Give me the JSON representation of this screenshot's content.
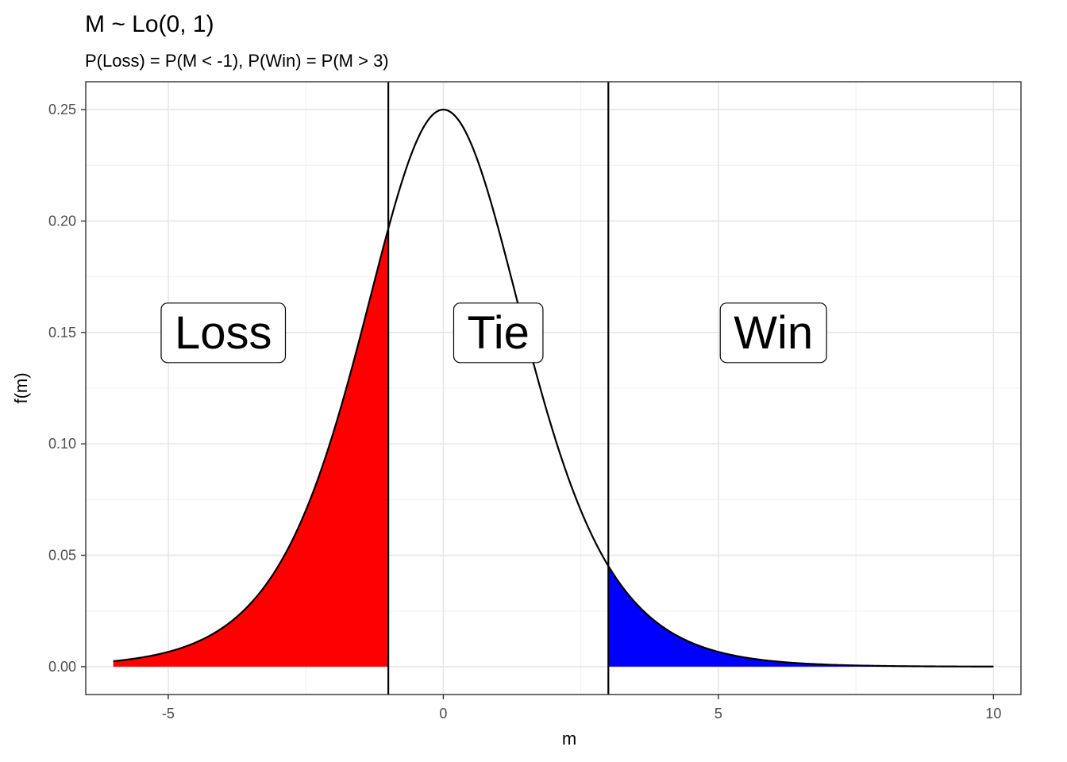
{
  "chart_data": {
    "type": "area",
    "title": "M ~ Lo(0, 1)",
    "subtitle": "P(Loss) = P(M < -1), P(Win) = P(M > 3)",
    "xlabel": "m",
    "ylabel": "f(m)",
    "xlim": [
      -6.5,
      10.5
    ],
    "ylim": [
      -0.0125,
      0.2625
    ],
    "x_ticks": [
      -5,
      0,
      5,
      10
    ],
    "x_tick_labels": [
      "-5",
      "0",
      "5",
      "10"
    ],
    "y_ticks": [
      0,
      0.05,
      0.1,
      0.15,
      0.2,
      0.25
    ],
    "y_tick_labels": [
      "0.00",
      "0.05",
      "0.10",
      "0.15",
      "0.20",
      "0.25"
    ],
    "grid": true,
    "curve": {
      "distribution": "logistic",
      "location": 0,
      "scale": 1,
      "x_range": [
        -6,
        10
      ]
    },
    "thresholds": [
      -1,
      3
    ],
    "regions": [
      {
        "name": "Loss",
        "from": -6,
        "to": -1,
        "fill": "#ff0000"
      },
      {
        "name": "Win",
        "from": 3,
        "to": 10,
        "fill": "#0000ff"
      }
    ],
    "labels": [
      {
        "text": "Loss",
        "x": -4,
        "y": 0.15
      },
      {
        "text": "Tie",
        "x": 1,
        "y": 0.15
      },
      {
        "text": "Win",
        "x": 6,
        "y": 0.15
      }
    ]
  }
}
